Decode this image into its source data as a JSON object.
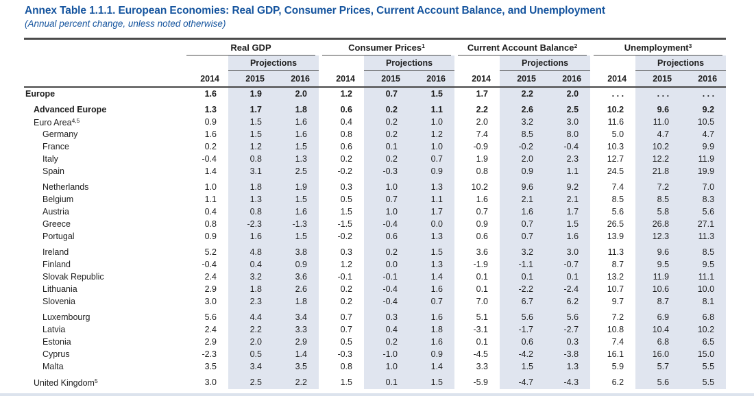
{
  "title": "Annex Table 1.1.1. European Economies: Real GDP, Consumer Prices, Current Account Balance, and Unemployment",
  "subtitle": "(Annual percent change, unless noted otherwise)",
  "colors": {
    "accent_blue": "#15549e",
    "projection_band": "#e0e5ef",
    "rule": "#4a4a4a",
    "text": "#1e1e1e"
  },
  "columns": {
    "groups": [
      {
        "label": "Real GDP",
        "sup": ""
      },
      {
        "label": "Consumer Prices",
        "sup": "1"
      },
      {
        "label": "Current Account Balance",
        "sup": "2"
      },
      {
        "label": "Unemployment",
        "sup": "3"
      }
    ],
    "projections_label": "Projections",
    "years": [
      "2014",
      "2015",
      "2016"
    ]
  },
  "table": {
    "rows": [
      {
        "name": "Europe",
        "sup": "",
        "indent": 0,
        "bold": true,
        "values": [
          "1.6",
          "1.9",
          "2.0",
          "1.2",
          "0.7",
          "1.5",
          "1.7",
          "2.2",
          "2.0",
          ". . .",
          ". . .",
          ". . ."
        ]
      },
      {
        "spacer": true
      },
      {
        "name": "Advanced Europe",
        "sup": "",
        "indent": 1,
        "bold": true,
        "values": [
          "1.3",
          "1.7",
          "1.8",
          "0.6",
          "0.2",
          "1.1",
          "2.2",
          "2.6",
          "2.5",
          "10.2",
          "9.6",
          "9.2"
        ]
      },
      {
        "name": "Euro Area",
        "sup": "4,5",
        "indent": 1,
        "bold": false,
        "values": [
          "0.9",
          "1.5",
          "1.6",
          "0.4",
          "0.2",
          "1.0",
          "2.0",
          "3.2",
          "3.0",
          "11.6",
          "11.0",
          "10.5"
        ]
      },
      {
        "name": "Germany",
        "sup": "",
        "indent": 2,
        "bold": false,
        "values": [
          "1.6",
          "1.5",
          "1.6",
          "0.8",
          "0.2",
          "1.2",
          "7.4",
          "8.5",
          "8.0",
          "5.0",
          "4.7",
          "4.7"
        ]
      },
      {
        "name": "France",
        "sup": "",
        "indent": 2,
        "bold": false,
        "values": [
          "0.2",
          "1.2",
          "1.5",
          "0.6",
          "0.1",
          "1.0",
          "-0.9",
          "-0.2",
          "-0.4",
          "10.3",
          "10.2",
          "9.9"
        ]
      },
      {
        "name": "Italy",
        "sup": "",
        "indent": 2,
        "bold": false,
        "values": [
          "-0.4",
          "0.8",
          "1.3",
          "0.2",
          "0.2",
          "0.7",
          "1.9",
          "2.0",
          "2.3",
          "12.7",
          "12.2",
          "11.9"
        ]
      },
      {
        "name": "Spain",
        "sup": "",
        "indent": 2,
        "bold": false,
        "values": [
          "1.4",
          "3.1",
          "2.5",
          "-0.2",
          "-0.3",
          "0.9",
          "0.8",
          "0.9",
          "1.1",
          "24.5",
          "21.8",
          "19.9"
        ]
      },
      {
        "spacer": true
      },
      {
        "name": "Netherlands",
        "sup": "",
        "indent": 2,
        "bold": false,
        "values": [
          "1.0",
          "1.8",
          "1.9",
          "0.3",
          "1.0",
          "1.3",
          "10.2",
          "9.6",
          "9.2",
          "7.4",
          "7.2",
          "7.0"
        ]
      },
      {
        "name": "Belgium",
        "sup": "",
        "indent": 2,
        "bold": false,
        "values": [
          "1.1",
          "1.3",
          "1.5",
          "0.5",
          "0.7",
          "1.1",
          "1.6",
          "2.1",
          "2.1",
          "8.5",
          "8.5",
          "8.3"
        ]
      },
      {
        "name": "Austria",
        "sup": "",
        "indent": 2,
        "bold": false,
        "values": [
          "0.4",
          "0.8",
          "1.6",
          "1.5",
          "1.0",
          "1.7",
          "0.7",
          "1.6",
          "1.7",
          "5.6",
          "5.8",
          "5.6"
        ]
      },
      {
        "name": "Greece",
        "sup": "",
        "indent": 2,
        "bold": false,
        "values": [
          "0.8",
          "-2.3",
          "-1.3",
          "-1.5",
          "-0.4",
          "0.0",
          "0.9",
          "0.7",
          "1.5",
          "26.5",
          "26.8",
          "27.1"
        ]
      },
      {
        "name": "Portugal",
        "sup": "",
        "indent": 2,
        "bold": false,
        "values": [
          "0.9",
          "1.6",
          "1.5",
          "-0.2",
          "0.6",
          "1.3",
          "0.6",
          "0.7",
          "1.6",
          "13.9",
          "12.3",
          "11.3"
        ]
      },
      {
        "spacer": true
      },
      {
        "name": "Ireland",
        "sup": "",
        "indent": 2,
        "bold": false,
        "values": [
          "5.2",
          "4.8",
          "3.8",
          "0.3",
          "0.2",
          "1.5",
          "3.6",
          "3.2",
          "3.0",
          "11.3",
          "9.6",
          "8.5"
        ]
      },
      {
        "name": "Finland",
        "sup": "",
        "indent": 2,
        "bold": false,
        "values": [
          "-0.4",
          "0.4",
          "0.9",
          "1.2",
          "0.0",
          "1.3",
          "-1.9",
          "-1.1",
          "-0.7",
          "8.7",
          "9.5",
          "9.5"
        ]
      },
      {
        "name": "Slovak Republic",
        "sup": "",
        "indent": 2,
        "bold": false,
        "values": [
          "2.4",
          "3.2",
          "3.6",
          "-0.1",
          "-0.1",
          "1.4",
          "0.1",
          "0.1",
          "0.1",
          "13.2",
          "11.9",
          "11.1"
        ]
      },
      {
        "name": "Lithuania",
        "sup": "",
        "indent": 2,
        "bold": false,
        "values": [
          "2.9",
          "1.8",
          "2.6",
          "0.2",
          "-0.4",
          "1.6",
          "0.1",
          "-2.2",
          "-2.4",
          "10.7",
          "10.6",
          "10.0"
        ]
      },
      {
        "name": "Slovenia",
        "sup": "",
        "indent": 2,
        "bold": false,
        "values": [
          "3.0",
          "2.3",
          "1.8",
          "0.2",
          "-0.4",
          "0.7",
          "7.0",
          "6.7",
          "6.2",
          "9.7",
          "8.7",
          "8.1"
        ]
      },
      {
        "spacer": true
      },
      {
        "name": "Luxembourg",
        "sup": "",
        "indent": 2,
        "bold": false,
        "values": [
          "5.6",
          "4.4",
          "3.4",
          "0.7",
          "0.3",
          "1.6",
          "5.1",
          "5.6",
          "5.6",
          "7.2",
          "6.9",
          "6.8"
        ]
      },
      {
        "name": "Latvia",
        "sup": "",
        "indent": 2,
        "bold": false,
        "values": [
          "2.4",
          "2.2",
          "3.3",
          "0.7",
          "0.4",
          "1.8",
          "-3.1",
          "-1.7",
          "-2.7",
          "10.8",
          "10.4",
          "10.2"
        ]
      },
      {
        "name": "Estonia",
        "sup": "",
        "indent": 2,
        "bold": false,
        "values": [
          "2.9",
          "2.0",
          "2.9",
          "0.5",
          "0.2",
          "1.6",
          "0.1",
          "0.6",
          "0.3",
          "7.4",
          "6.8",
          "6.5"
        ]
      },
      {
        "name": "Cyprus",
        "sup": "",
        "indent": 2,
        "bold": false,
        "values": [
          "-2.3",
          "0.5",
          "1.4",
          "-0.3",
          "-1.0",
          "0.9",
          "-4.5",
          "-4.2",
          "-3.8",
          "16.1",
          "16.0",
          "15.0"
        ]
      },
      {
        "name": "Malta",
        "sup": "",
        "indent": 2,
        "bold": false,
        "values": [
          "3.5",
          "3.4",
          "3.5",
          "0.8",
          "1.0",
          "1.4",
          "3.3",
          "1.5",
          "1.3",
          "5.9",
          "5.7",
          "5.5"
        ]
      },
      {
        "spacer": true
      },
      {
        "name": "United Kingdom",
        "sup": "5",
        "indent": 1,
        "bold": false,
        "values": [
          "3.0",
          "2.5",
          "2.2",
          "1.5",
          "0.1",
          "1.5",
          "-5.9",
          "-4.7",
          "-4.3",
          "6.2",
          "5.6",
          "5.5"
        ]
      }
    ]
  }
}
